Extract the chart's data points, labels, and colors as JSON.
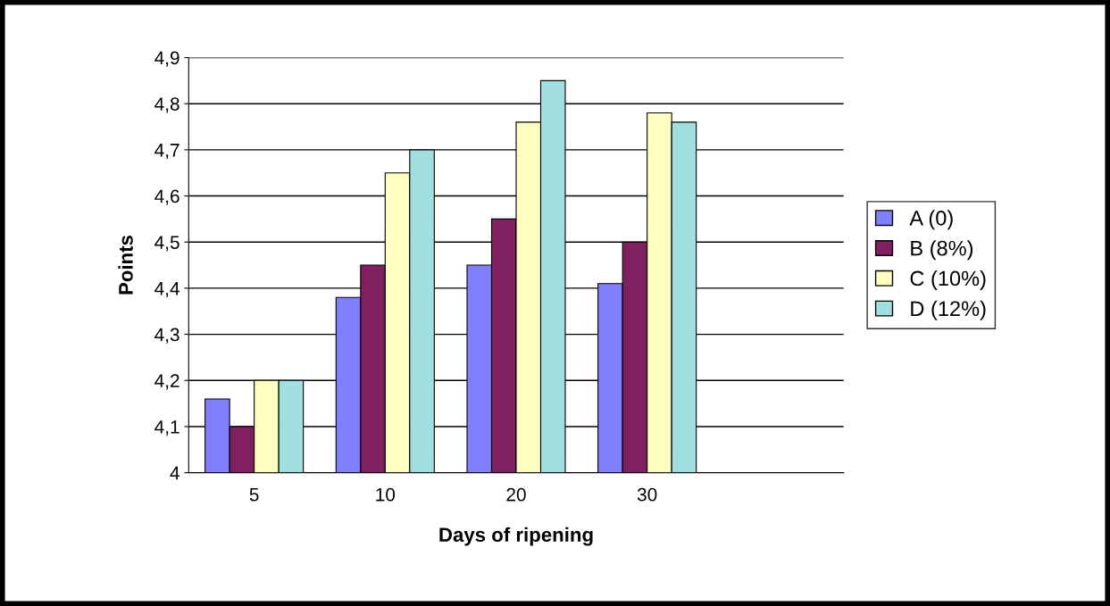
{
  "chart_data": {
    "type": "bar",
    "xlabel": "Days of ripening",
    "ylabel": "Points",
    "categories": [
      "5",
      "10",
      "20",
      "30",
      null
    ],
    "series": [
      {
        "name": "A (0)",
        "color": "#8080ff",
        "values": [
          4.16,
          4.38,
          4.45,
          4.41,
          null
        ]
      },
      {
        "name": "B (8%)",
        "color": "#802060",
        "values": [
          4.1,
          4.45,
          4.55,
          4.5,
          null
        ]
      },
      {
        "name": "C (10%)",
        "color": "#ffffc0",
        "values": [
          4.2,
          4.65,
          4.76,
          4.78,
          null
        ]
      },
      {
        "name": "D (12%)",
        "color": "#a0e0e0",
        "values": [
          4.2,
          4.7,
          4.85,
          4.76,
          null
        ]
      }
    ],
    "ylim": [
      4,
      4.9
    ],
    "yticks": [
      {
        "value": 4,
        "label": "4"
      },
      {
        "value": 4.1,
        "label": "4,1"
      },
      {
        "value": 4.2,
        "label": "4,2"
      },
      {
        "value": 4.3,
        "label": "4,3"
      },
      {
        "value": 4.4,
        "label": "4,4"
      },
      {
        "value": 4.5,
        "label": "4,5"
      },
      {
        "value": 4.6,
        "label": "4,6"
      },
      {
        "value": 4.7,
        "label": "4,7"
      },
      {
        "value": 4.8,
        "label": "4,8"
      },
      {
        "value": 4.9,
        "label": "4,9"
      }
    ],
    "grid": "y",
    "legend": "right"
  }
}
